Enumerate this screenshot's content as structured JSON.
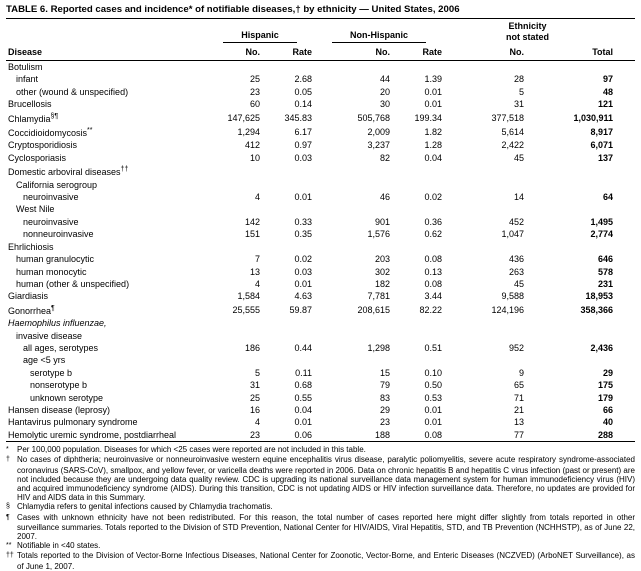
{
  "title": "TABLE 6. Reported cases and incidence* of notifiable diseases,† by ethnicity — United States, 2006",
  "table": {
    "group_headers": {
      "hispanic": "Hispanic",
      "non_hispanic": "Non-Hispanic",
      "ethnicity_line1": "Ethnicity",
      "ethnicity_line2": "not stated"
    },
    "column_headers": [
      "Disease",
      "No.",
      "Rate",
      "No.",
      "Rate",
      "No.",
      "Total"
    ],
    "rows": [
      {
        "label": "Botulism",
        "indent": 0
      },
      {
        "label": "infant",
        "indent": 1,
        "values": [
          "25",
          "2.68",
          "44",
          "1.39",
          "28",
          "97"
        ]
      },
      {
        "label": "other (wound & unspecified)",
        "indent": 1,
        "values": [
          "23",
          "0.05",
          "20",
          "0.01",
          "5",
          "48"
        ]
      },
      {
        "label": "Brucellosis",
        "indent": 0,
        "values": [
          "60",
          "0.14",
          "30",
          "0.01",
          "31",
          "121"
        ]
      },
      {
        "label": "Chlamydia",
        "sup": "§¶",
        "indent": 0,
        "values": [
          "147,625",
          "345.83",
          "505,768",
          "199.34",
          "377,518",
          "1,030,911"
        ]
      },
      {
        "label": "Coccidioidomycosis",
        "sup": "**",
        "indent": 0,
        "values": [
          "1,294",
          "6.17",
          "2,009",
          "1.82",
          "5,614",
          "8,917"
        ]
      },
      {
        "label": "Cryptosporidiosis",
        "indent": 0,
        "values": [
          "412",
          "0.97",
          "3,237",
          "1.28",
          "2,422",
          "6,071"
        ]
      },
      {
        "label": "Cyclosporiasis",
        "indent": 0,
        "values": [
          "10",
          "0.03",
          "82",
          "0.04",
          "45",
          "137"
        ]
      },
      {
        "label": "Domestic arboviral diseases",
        "sup": "††",
        "indent": 0
      },
      {
        "label": "California serogroup",
        "indent": 1
      },
      {
        "label": "neuroinvasive",
        "indent": 2,
        "values": [
          "4",
          "0.01",
          "46",
          "0.02",
          "14",
          "64"
        ]
      },
      {
        "label": "West Nile",
        "indent": 1
      },
      {
        "label": "neuroinvasive",
        "indent": 2,
        "values": [
          "142",
          "0.33",
          "901",
          "0.36",
          "452",
          "1,495"
        ]
      },
      {
        "label": "nonneuroinvasive",
        "indent": 2,
        "values": [
          "151",
          "0.35",
          "1,576",
          "0.62",
          "1,047",
          "2,774"
        ]
      },
      {
        "label": "Ehrlichiosis",
        "indent": 0
      },
      {
        "label": "human granulocytic",
        "indent": 1,
        "values": [
          "7",
          "0.02",
          "203",
          "0.08",
          "436",
          "646"
        ]
      },
      {
        "label": "human monocytic",
        "indent": 1,
        "values": [
          "13",
          "0.03",
          "302",
          "0.13",
          "263",
          "578"
        ]
      },
      {
        "label": "human (other & unspecified)",
        "indent": 1,
        "values": [
          "4",
          "0.01",
          "182",
          "0.08",
          "45",
          "231"
        ]
      },
      {
        "label": "Giardiasis",
        "indent": 0,
        "values": [
          "1,584",
          "4.63",
          "7,781",
          "3.44",
          "9,588",
          "18,953"
        ]
      },
      {
        "label": "Gonorrhea",
        "sup": "¶",
        "indent": 0,
        "values": [
          "25,555",
          "59.87",
          "208,615",
          "82.22",
          "124,196",
          "358,366"
        ]
      },
      {
        "label": "Haemophilus influenzae,",
        "indent": 0,
        "italic": true
      },
      {
        "label": "invasive disease",
        "indent": 1
      },
      {
        "label": "all ages, serotypes",
        "indent": 2,
        "values": [
          "186",
          "0.44",
          "1,298",
          "0.51",
          "952",
          "2,436"
        ]
      },
      {
        "label": "age <5 yrs",
        "indent": 2
      },
      {
        "label": "serotype b",
        "indent": 3,
        "values": [
          "5",
          "0.11",
          "15",
          "0.10",
          "9",
          "29"
        ]
      },
      {
        "label": "nonserotype b",
        "indent": 3,
        "values": [
          "31",
          "0.68",
          "79",
          "0.50",
          "65",
          "175"
        ]
      },
      {
        "label": "unknown serotype",
        "indent": 3,
        "values": [
          "25",
          "0.55",
          "83",
          "0.53",
          "71",
          "179"
        ]
      },
      {
        "label": "Hansen disease (leprosy)",
        "indent": 0,
        "values": [
          "16",
          "0.04",
          "29",
          "0.01",
          "21",
          "66"
        ]
      },
      {
        "label": "Hantavirus pulmonary syndrome",
        "indent": 0,
        "values": [
          "4",
          "0.01",
          "23",
          "0.01",
          "13",
          "40"
        ]
      },
      {
        "label": "Hemolytic uremic syndrome, postdiarrheal",
        "indent": 0,
        "values": [
          "23",
          "0.06",
          "188",
          "0.08",
          "77",
          "288"
        ]
      }
    ]
  },
  "footnotes": [
    {
      "marker": "*",
      "text": "Per 100,000 population. Diseases for which <25 cases were reported are not included in this table."
    },
    {
      "marker": "†",
      "text": "No cases of diphtheria; neuroinvasive or nonneuroinvasive western equine encephalitis virus disease, paralytic poliomyelitis, severe acute respiratory syndrome-associated coronavirus (SARS-CoV), smallpox, and yellow fever, or varicella deaths were reported in 2006. Data on chronic hepatitis B and hepatitis C virus infection (past or present) are not included because they are undergoing data quality review. CDC is upgrading its national surveillance data management system for human immunodeficiency virus (HIV) and acquired immunodeficiency syndrome (AIDS). During this transition, CDC is not updating AIDS or HIV infection surveillance data. Therefore, no updates are provided for HIV and AIDS data in this Summary."
    },
    {
      "marker": "§",
      "text": "Chlamydia refers to genital infections caused by Chlamydia trachomatis."
    },
    {
      "marker": "¶",
      "text": "Cases with unknown ethnicity have not been redistributed. For this reason, the total number of cases reported here might differ slightly from totals reported in other surveillance summaries. Totals reported to the Division of STD Prevention, National Center for HIV/AIDS, Viral Hepatitis, STD, and TB Prevention (NCHHSTP), as of June 22, 2007."
    },
    {
      "marker": "**",
      "text": "Notifiable in <40 states."
    },
    {
      "marker": "††",
      "text": "Totals reported to the Division of Vector-Borne Infectious Diseases, National Center for Zoonotic, Vector-Borne, and Enteric Diseases (NCZVED) (ArboNET Surveillance), as of June 1, 2007."
    }
  ]
}
